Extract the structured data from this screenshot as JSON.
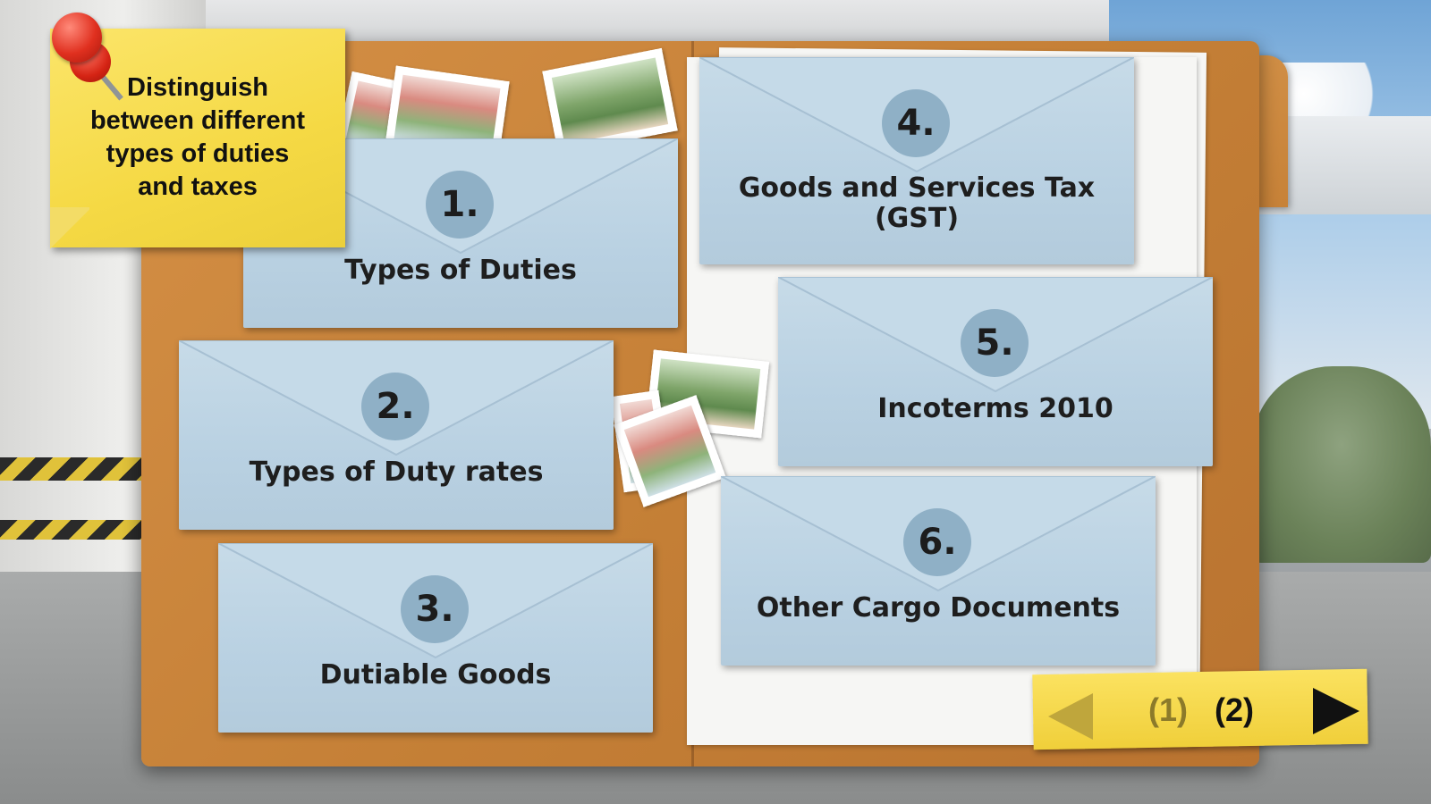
{
  "objective_note": {
    "lines": [
      "Distinguish",
      "between different",
      "types of duties",
      "and taxes"
    ]
  },
  "topics": [
    {
      "number": "1.",
      "label_lines": [
        "Types of Duties"
      ]
    },
    {
      "number": "2.",
      "label_lines": [
        "Types of Duty rates"
      ]
    },
    {
      "number": "3.",
      "label_lines": [
        "Dutiable Goods"
      ]
    },
    {
      "number": "4.",
      "label_lines": [
        "Goods and Services Tax",
        "(GST)"
      ]
    },
    {
      "number": "5.",
      "label_lines": [
        "Incoterms 2010"
      ]
    },
    {
      "number": "6.",
      "label_lines": [
        "Other Cargo Documents"
      ]
    }
  ],
  "pagination": {
    "page1_label": "(1)",
    "page2_label": "(2)",
    "current_page": 2,
    "inactive_color": "#8c7a2a",
    "active_color": "#111111"
  },
  "colors": {
    "envelope": "#bcd3e3",
    "number_circle": "#8fb0c6",
    "folder": "#c98539",
    "sticky_note": "#f5d944"
  }
}
